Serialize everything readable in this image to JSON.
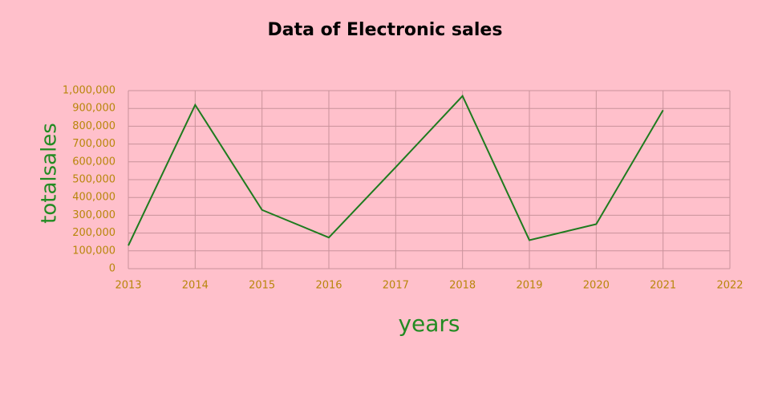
{
  "chart_data": {
    "type": "line",
    "title": "Data of Electronic sales",
    "x_label": "years",
    "y_label": "totalsales",
    "x": [
      2013,
      2014,
      2015,
      2016,
      2017,
      2018,
      2019,
      2020,
      2021
    ],
    "series": [
      {
        "name": "totalsales",
        "color": "#1e7b1e",
        "values": [
          130000,
          920000,
          330000,
          175000,
          570000,
          970000,
          160000,
          250000,
          890000
        ]
      }
    ],
    "xlim": [
      2013,
      2022
    ],
    "xticks": [
      2013,
      2014,
      2015,
      2016,
      2017,
      2018,
      2019,
      2020,
      2021,
      2022
    ],
    "ylim": [
      0,
      1000000
    ],
    "yticks": [
      0,
      {
        "value": 100000,
        "label": "100,000"
      },
      {
        "value": 200000,
        "label": "200,000"
      },
      {
        "value": 300000,
        "label": "300,000"
      },
      {
        "value": 400000,
        "label": "400,000"
      },
      {
        "value": 500000,
        "label": "500,000"
      },
      {
        "value": 600000,
        "label": "600,000"
      },
      {
        "value": 700000,
        "label": "700,000"
      },
      {
        "value": 800000,
        "label": "800,000"
      },
      {
        "value": 900000,
        "label": "900,000"
      },
      {
        "value": 1000000,
        "label": "1,000,000"
      }
    ],
    "grid": true
  }
}
